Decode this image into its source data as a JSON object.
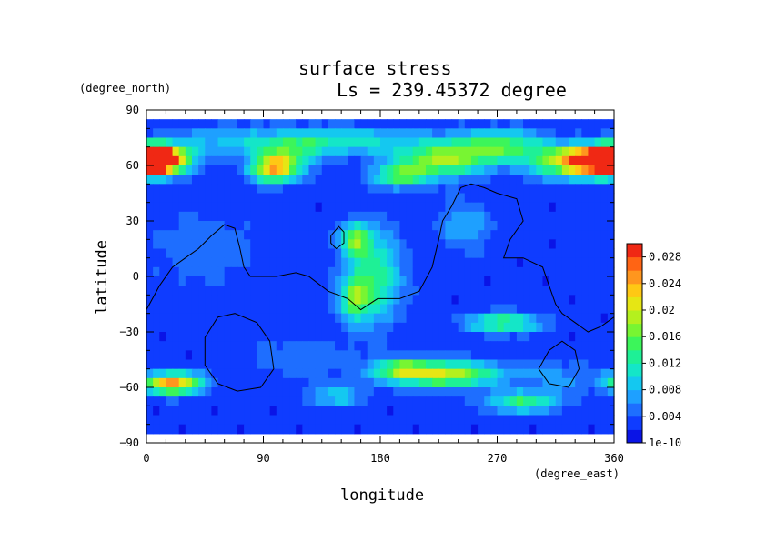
{
  "chart_data": {
    "type": "heatmap",
    "title": "surface stress",
    "subtitle": "Ls = 239.45372 degree",
    "xlabel": "longitude",
    "ylabel": "latitude",
    "x_units": "(degree_east)",
    "y_units": "(degree_north)",
    "xlim": [
      0,
      360
    ],
    "ylim": [
      -90,
      90
    ],
    "x_ticks": [
      "0",
      "90",
      "180",
      "270",
      "360"
    ],
    "y_ticks": [
      "90",
      "60",
      "30",
      "0",
      "−30",
      "−60",
      "−90"
    ],
    "colorbar": {
      "min": 0,
      "max": 0.03,
      "labels": [
        "0.028",
        "0.024",
        "0.02",
        "0.016",
        "0.012",
        "0.008",
        "0.004",
        "1e-10"
      ],
      "colors": [
        "#0a14e6",
        "#0f3cff",
        "#1e6eff",
        "#1ea0ff",
        "#14c8f0",
        "#14e6c8",
        "#1ef096",
        "#3cf55a",
        "#78f532",
        "#b4f01e",
        "#e6e614",
        "#ffc814",
        "#ff961e",
        "#ff6414",
        "#f02814"
      ]
    },
    "field": {
      "background": 0.0025,
      "lon_step": 5,
      "lat_step": 5,
      "lat_range": [
        -85,
        85
      ],
      "blobs": [
        {
          "lon": 5,
          "lat": 63,
          "sx": 14,
          "sy": 5,
          "amp": 0.029
        },
        {
          "lon": 355,
          "lat": 63,
          "sx": 22,
          "sy": 5,
          "amp": 0.029
        },
        {
          "lon": 325,
          "lat": 61,
          "sx": 22,
          "sy": 6,
          "amp": 0.012
        },
        {
          "lon": 98,
          "lat": 58,
          "sx": 12,
          "sy": 5,
          "amp": 0.019
        },
        {
          "lon": 110,
          "lat": 65,
          "sx": 18,
          "sy": 6,
          "amp": 0.008
        },
        {
          "lon": 225,
          "lat": 62,
          "sx": 25,
          "sy": 6,
          "amp": 0.014
        },
        {
          "lon": 195,
          "lat": 54,
          "sx": 14,
          "sy": 4,
          "amp": 0.012
        },
        {
          "lon": 270,
          "lat": 70,
          "sx": 28,
          "sy": 6,
          "amp": 0.013
        },
        {
          "lon": 150,
          "lat": 73,
          "sx": 45,
          "sy": 5,
          "amp": 0.009
        },
        {
          "lon": 60,
          "lat": 73,
          "sx": 35,
          "sy": 6,
          "amp": 0.005
        },
        {
          "lon": 175,
          "lat": 0,
          "sx": 15,
          "sy": 18,
          "amp": 0.011
        },
        {
          "lon": 160,
          "lat": 20,
          "sx": 8,
          "sy": 6,
          "amp": 0.012
        },
        {
          "lon": 160,
          "lat": -12,
          "sx": 8,
          "sy": 8,
          "amp": 0.011
        },
        {
          "lon": 245,
          "lat": 28,
          "sx": 15,
          "sy": 10,
          "amp": 0.005
        },
        {
          "lon": 45,
          "lat": 15,
          "sx": 30,
          "sy": 15,
          "amp": 0.003
        },
        {
          "lon": 275,
          "lat": -25,
          "sx": 20,
          "sy": 4,
          "amp": 0.012
        },
        {
          "lon": 230,
          "lat": -53,
          "sx": 30,
          "sy": 5,
          "amp": 0.017
        },
        {
          "lon": 195,
          "lat": -50,
          "sx": 15,
          "sy": 4,
          "amp": 0.01
        },
        {
          "lon": 20,
          "lat": -58,
          "sx": 16,
          "sy": 4,
          "amp": 0.022
        },
        {
          "lon": 290,
          "lat": -68,
          "sx": 20,
          "sy": 4,
          "amp": 0.011
        },
        {
          "lon": 145,
          "lat": -65,
          "sx": 15,
          "sy": 4,
          "amp": 0.007
        },
        {
          "lon": 320,
          "lat": -55,
          "sx": 22,
          "sy": 6,
          "amp": 0.004
        },
        {
          "lon": 120,
          "lat": -45,
          "sx": 30,
          "sy": 8,
          "amp": 0.003
        }
      ]
    },
    "contours": [
      {
        "name": "topography-contour-main",
        "points": [
          [
            0,
            -18
          ],
          [
            10,
            -5
          ],
          [
            20,
            5
          ],
          [
            30,
            10
          ],
          [
            40,
            15
          ],
          [
            50,
            22
          ],
          [
            60,
            28
          ],
          [
            68,
            26
          ],
          [
            72,
            15
          ],
          [
            75,
            5
          ],
          [
            80,
            0
          ],
          [
            100,
            0
          ],
          [
            115,
            2
          ],
          [
            125,
            0
          ],
          [
            140,
            -8
          ],
          [
            155,
            -12
          ],
          [
            165,
            -18
          ],
          [
            178,
            -12
          ],
          [
            195,
            -12
          ],
          [
            210,
            -8
          ],
          [
            220,
            5
          ],
          [
            225,
            20
          ],
          [
            228,
            30
          ],
          [
            235,
            38
          ],
          [
            242,
            48
          ],
          [
            250,
            50
          ],
          [
            260,
            48
          ],
          [
            270,
            45
          ],
          [
            285,
            42
          ],
          [
            290,
            30
          ],
          [
            280,
            20
          ],
          [
            275,
            10
          ],
          [
            290,
            10
          ],
          [
            305,
            5
          ],
          [
            310,
            -5
          ],
          [
            315,
            -15
          ],
          [
            320,
            -20
          ],
          [
            330,
            -25
          ],
          [
            340,
            -30
          ],
          [
            350,
            -27
          ],
          [
            360,
            -22
          ]
        ]
      },
      {
        "name": "topography-contour-islet",
        "points": [
          [
            142,
            22
          ],
          [
            148,
            27
          ],
          [
            152,
            24
          ],
          [
            152,
            18
          ],
          [
            146,
            15
          ],
          [
            142,
            18
          ],
          [
            142,
            22
          ]
        ]
      },
      {
        "name": "topography-contour-hellas",
        "points": [
          [
            55,
            -22
          ],
          [
            68,
            -20
          ],
          [
            85,
            -25
          ],
          [
            95,
            -35
          ],
          [
            98,
            -50
          ],
          [
            88,
            -60
          ],
          [
            70,
            -62
          ],
          [
            55,
            -58
          ],
          [
            45,
            -48
          ],
          [
            45,
            -33
          ],
          [
            55,
            -22
          ]
        ]
      },
      {
        "name": "topography-contour-argyre",
        "points": [
          [
            310,
            -40
          ],
          [
            320,
            -35
          ],
          [
            330,
            -40
          ],
          [
            333,
            -50
          ],
          [
            325,
            -60
          ],
          [
            310,
            -58
          ],
          [
            302,
            -50
          ],
          [
            310,
            -40
          ]
        ]
      }
    ]
  }
}
